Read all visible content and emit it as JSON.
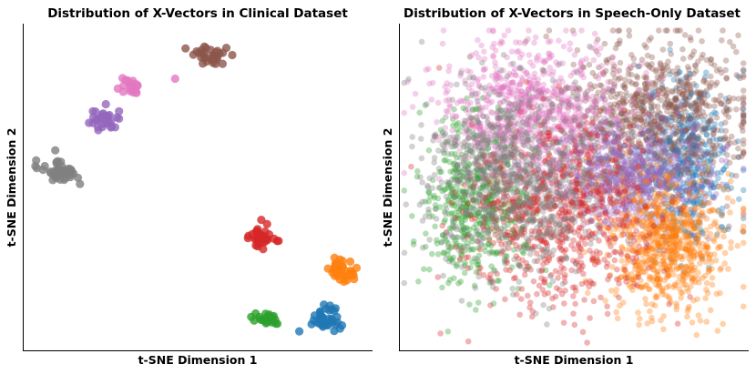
{
  "chart_data": [
    {
      "type": "scatter",
      "title": "Distribution of X-Vectors in Clinical Dataset",
      "xlabel": "t-SNE Dimension 1",
      "ylabel": "t-SNE Dimension 2",
      "xlim": [
        0,
        100
      ],
      "ylim": [
        0,
        100
      ],
      "ticks": "none",
      "grid": false,
      "legend": "none",
      "clusters": [
        {
          "name": "cluster-brown",
          "color": "#8c564b",
          "center": [
            53,
            91
          ],
          "spread": [
            2.6,
            2.0
          ],
          "count": 32,
          "alpha": 0.8
        },
        {
          "name": "cluster-pink",
          "color": "#e377c2",
          "center": [
            31,
            81
          ],
          "spread": [
            1.9,
            1.6
          ],
          "count": 22,
          "alpha": 0.8
        },
        {
          "name": "cluster-purple",
          "color": "#9467bd",
          "center": [
            23,
            71.5
          ],
          "spread": [
            2.3,
            2.1
          ],
          "count": 32,
          "alpha": 0.8
        },
        {
          "name": "cluster-gray",
          "color": "#7f7f7f",
          "center": [
            9,
            55.5
          ],
          "spread": [
            3.0,
            2.1
          ],
          "count": 42,
          "alpha": 0.8
        },
        {
          "name": "cluster-red",
          "color": "#d62728",
          "center": [
            68,
            34.5
          ],
          "spread": [
            2.2,
            2.3
          ],
          "count": 32,
          "alpha": 0.8
        },
        {
          "name": "cluster-orange",
          "color": "#ff7f0e",
          "center": [
            91,
            24.5
          ],
          "spread": [
            2.6,
            1.9
          ],
          "count": 36,
          "alpha": 0.8
        },
        {
          "name": "cluster-green",
          "color": "#2ca02c",
          "center": [
            70,
            9
          ],
          "spread": [
            2.2,
            1.0
          ],
          "count": 24,
          "alpha": 0.8
        },
        {
          "name": "cluster-blue",
          "color": "#1f77b4",
          "center": [
            87,
            9
          ],
          "spread": [
            2.6,
            2.1
          ],
          "count": 40,
          "alpha": 0.8
        }
      ],
      "outliers": [
        {
          "color": "#e377c2",
          "x": 43.5,
          "y": 84
        }
      ]
    },
    {
      "type": "scatter",
      "title": "Distribution of X-Vectors in Speech-Only Dataset",
      "xlabel": "t-SNE Dimension 1",
      "ylabel": "t-SNE Dimension 2",
      "xlim": [
        0,
        100
      ],
      "ylim": [
        0,
        100
      ],
      "ticks": "none",
      "grid": false,
      "legend": "none",
      "clusters": [
        {
          "name": "cluster-green",
          "color": "#2ca02c",
          "center": [
            22,
            45
          ],
          "spread": [
            8,
            13
          ],
          "count": 500,
          "alpha": 0.35
        },
        {
          "name": "cluster-blue",
          "color": "#1f77b4",
          "center": [
            82,
            58
          ],
          "spread": [
            7,
            14
          ],
          "count": 500,
          "alpha": 0.35
        },
        {
          "name": "cluster-brown",
          "color": "#8c564b",
          "center": [
            73,
            73
          ],
          "spread": [
            13,
            11
          ],
          "count": 850,
          "alpha": 0.35
        },
        {
          "name": "cluster-pink",
          "color": "#e377c2",
          "center": [
            37,
            74
          ],
          "spread": [
            13,
            11
          ],
          "count": 850,
          "alpha": 0.35
        },
        {
          "name": "cluster-purple",
          "color": "#9467bd",
          "center": [
            66,
            53
          ],
          "spread": [
            11,
            8
          ],
          "count": 650,
          "alpha": 0.35
        },
        {
          "name": "cluster-orange",
          "color": "#ff7f0e",
          "center": [
            77,
            32
          ],
          "spread": [
            9,
            10
          ],
          "count": 750,
          "alpha": 0.35
        },
        {
          "name": "cluster-red",
          "color": "#d62728",
          "center": [
            45,
            42
          ],
          "spread": [
            13,
            14
          ],
          "count": 750,
          "alpha": 0.35
        },
        {
          "name": "cluster-gray",
          "color": "#7f7f7f",
          "center": [
            33,
            53
          ],
          "spread": [
            13,
            15
          ],
          "count": 850,
          "alpha": 0.35
        }
      ],
      "outliers": []
    }
  ]
}
